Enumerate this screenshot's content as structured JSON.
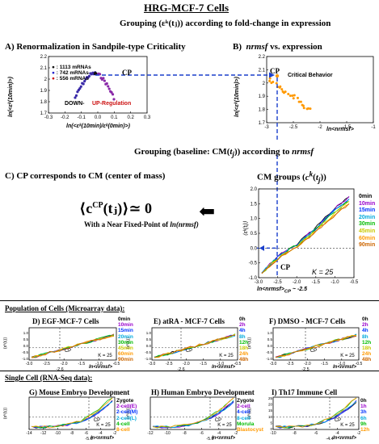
{
  "figure": {
    "title": "HRG-MCF-7 Cells",
    "grouping1": "Grouping (εᵏ(tⱼ)) according to fold-change in expression",
    "panelA": {
      "title": "A)  Renormalization in Sandpile-type Criticality",
      "legend": [
        {
          "label": ": 1113 mRNAs",
          "color": "#111111"
        },
        {
          "label": ": 742 mRNAs",
          "color": "#2222cc"
        },
        {
          "label": ": 556 mRNAs",
          "color": "#cc1111"
        }
      ],
      "cp": "CP",
      "down": "DOWN-",
      "up": "UP-Regulation",
      "ylabel": "ln(<εᵏ(10min)>)",
      "xlabel": "ln(<εᵏ(10min)/εᵏ(0min)>)",
      "xticks": [
        "-0.3",
        "-0.2",
        "-0.1",
        "0.0",
        "0.1",
        "0.2",
        "0.3"
      ],
      "yticks": [
        "2.2",
        "2.1",
        "2",
        "1.9",
        "1.8",
        "1.7"
      ]
    },
    "panelB": {
      "title": "B)  nrmsf vs. expression",
      "cp": "CP",
      "note": "Critical Behavior",
      "ylabel": "ln(<εᵏ(10min)>)",
      "xlabel": "ln<nrmsf>",
      "xticks": [
        "-3",
        "-2.5",
        "-2",
        "-1.5",
        "-1"
      ],
      "yticks": [
        "2.2",
        "2.1",
        "2",
        "1.9",
        "1.8",
        "1.7"
      ]
    },
    "grouping2": "Grouping (baseline: CM(tⱼ)) according to nrmsf",
    "cmGroups": "CM groups (cᵏ(tⱼ))",
    "panelC": {
      "title": "C)  CP corresponds to CM (center of mass)",
      "formula": "⟨c",
      "formulaSup": "CP",
      "formulaTail": "(tⱼ)⟩≃ 0",
      "subtitle": "With a Near Fixed-Point of ln(nrmsf)",
      "cp": "CP",
      "k": "K = 25",
      "ylabel": "⟨εᵏ(tⱼ)⟩",
      "xlabel": "ln<nrmsf>CP ~ -2.5",
      "yticks": [
        "2.0",
        "1.5",
        "1.0",
        "0.5",
        "0.0",
        "-0.5",
        "-1.0"
      ],
      "xticks": [
        "-3.0",
        "-2.5",
        "-2.0",
        "-1.5",
        "-1.0",
        "-0.5"
      ],
      "legend": [
        {
          "label": "0min",
          "color": "#000000"
        },
        {
          "label": "10min",
          "color": "#9900cc"
        },
        {
          "label": "15min",
          "color": "#0033ff"
        },
        {
          "label": "20min",
          "color": "#00aadd"
        },
        {
          "label": "30min",
          "color": "#00bb00"
        },
        {
          "label": "45min",
          "color": "#dddd00"
        },
        {
          "label": "60min",
          "color": "#ff9900"
        },
        {
          "label": "90min",
          "color": "#cc6600"
        }
      ]
    },
    "population": "Population of Cells (Microarray data):",
    "panelD": {
      "title": "D)  EGF-MCF-7 Cells",
      "cp": "CP",
      "k": "K = 25",
      "mark": "-2.6",
      "xticks": [
        "-3.0",
        "-2.5",
        "-2.0",
        "-1.5",
        "-1.0",
        "-0.5"
      ],
      "legend": [
        {
          "label": "0min",
          "color": "#000000"
        },
        {
          "label": "10min",
          "color": "#9900cc"
        },
        {
          "label": "15min",
          "color": "#0033ff"
        },
        {
          "label": "20min",
          "color": "#00aadd"
        },
        {
          "label": "30min",
          "color": "#00bb00"
        },
        {
          "label": "45min",
          "color": "#dddd00"
        },
        {
          "label": "60min",
          "color": "#ff9900"
        },
        {
          "label": "90min",
          "color": "#cc6600"
        }
      ]
    },
    "panelE": {
      "title": "E)  atRA - MCF-7 Cells",
      "cp": "CP",
      "k": "K = 25",
      "mark": "-2.6",
      "xticks": [
        "-3.0",
        "-2.5",
        "-2.0",
        "-1.5",
        "-1.0",
        "-0.5"
      ],
      "legend": [
        {
          "label": "0h",
          "color": "#000000"
        },
        {
          "label": "2h",
          "color": "#9900cc"
        },
        {
          "label": "4h",
          "color": "#0033ff"
        },
        {
          "label": "8h",
          "color": "#00aadd"
        },
        {
          "label": "12h",
          "color": "#00bb00"
        },
        {
          "label": "18h",
          "color": "#dddd00"
        },
        {
          "label": "24h",
          "color": "#ff9900"
        },
        {
          "label": "48h",
          "color": "#cc6600"
        }
      ]
    },
    "panelF": {
      "title": "F)  DMSO - MCF-7 Cells",
      "cp": "CP",
      "k": "K = 25",
      "mark": "-2.5",
      "xticks": [
        "-3.0",
        "-2.5",
        "-2.0",
        "-1.5",
        "-1.0",
        "-0.5"
      ],
      "legend": [
        {
          "label": "0h",
          "color": "#000000"
        },
        {
          "label": "2h",
          "color": "#9900cc"
        },
        {
          "label": "4h",
          "color": "#0033ff"
        },
        {
          "label": "8h",
          "color": "#00aadd"
        },
        {
          "label": "12h",
          "color": "#00bb00"
        },
        {
          "label": "18h",
          "color": "#dddd00"
        },
        {
          "label": "24h",
          "color": "#ff9900"
        },
        {
          "label": "48h",
          "color": "#cc6600"
        }
      ]
    },
    "singleCell": "Single Cell (RNA-Seq data):",
    "panelG": {
      "title": "G)  Mouse Embryo Development",
      "cp": "CP",
      "k": "K = 25",
      "mark": "-5.6",
      "xticks": [
        "-14",
        "-12",
        "-10",
        "-8",
        "-6",
        "-4",
        "-2"
      ],
      "legend": [
        {
          "label": "Zygote",
          "color": "#000000"
        },
        {
          "label": "2-cell(E)",
          "color": "#9900cc"
        },
        {
          "label": "2-cell(M)",
          "color": "#0033ff"
        },
        {
          "label": "2-cell(L)",
          "color": "#00aadd"
        },
        {
          "label": "4-cell",
          "color": "#00bb00"
        },
        {
          "label": "8-cell",
          "color": "#ff9900"
        }
      ]
    },
    "panelH": {
      "title": "H)  Human Embryo Development",
      "cp": "CP",
      "k": "K = 25",
      "mark": "-5.9",
      "xticks": [
        "-12",
        "-10",
        "-8",
        "-6",
        "-4",
        "-2"
      ],
      "legend": [
        {
          "label": "Zygote",
          "color": "#000000"
        },
        {
          "label": "2-cell",
          "color": "#9900cc"
        },
        {
          "label": "4-cell",
          "color": "#0033ff"
        },
        {
          "label": "8-cell",
          "color": "#00aadd"
        },
        {
          "label": "Morula",
          "color": "#00bb00"
        },
        {
          "label": "Blastocyst",
          "color": "#ff9900"
        }
      ]
    },
    "panelI": {
      "title": "I)  Th17 Immune Cell",
      "cp": "CP",
      "k": "K = 25",
      "mark": "-4.4",
      "xticks": [
        "-10",
        "-8",
        "-6",
        "-4",
        "-2"
      ],
      "yticks": [
        "25",
        "20",
        "15",
        "10",
        "5",
        "0"
      ],
      "legend": [
        {
          "label": "0h",
          "color": "#000000"
        },
        {
          "label": "1h",
          "color": "#9900cc"
        },
        {
          "label": "3h",
          "color": "#0033ff"
        },
        {
          "label": "6h",
          "color": "#00aadd"
        },
        {
          "label": "9h",
          "color": "#00bb00"
        },
        {
          "label": "12h",
          "color": "#ff9900"
        }
      ]
    },
    "smallYLabel": "⟨εᵏ(tⱼ)⟩",
    "smallXLabel": "ln<nrmsf>",
    "arrowColor": "#1a3fcc"
  }
}
